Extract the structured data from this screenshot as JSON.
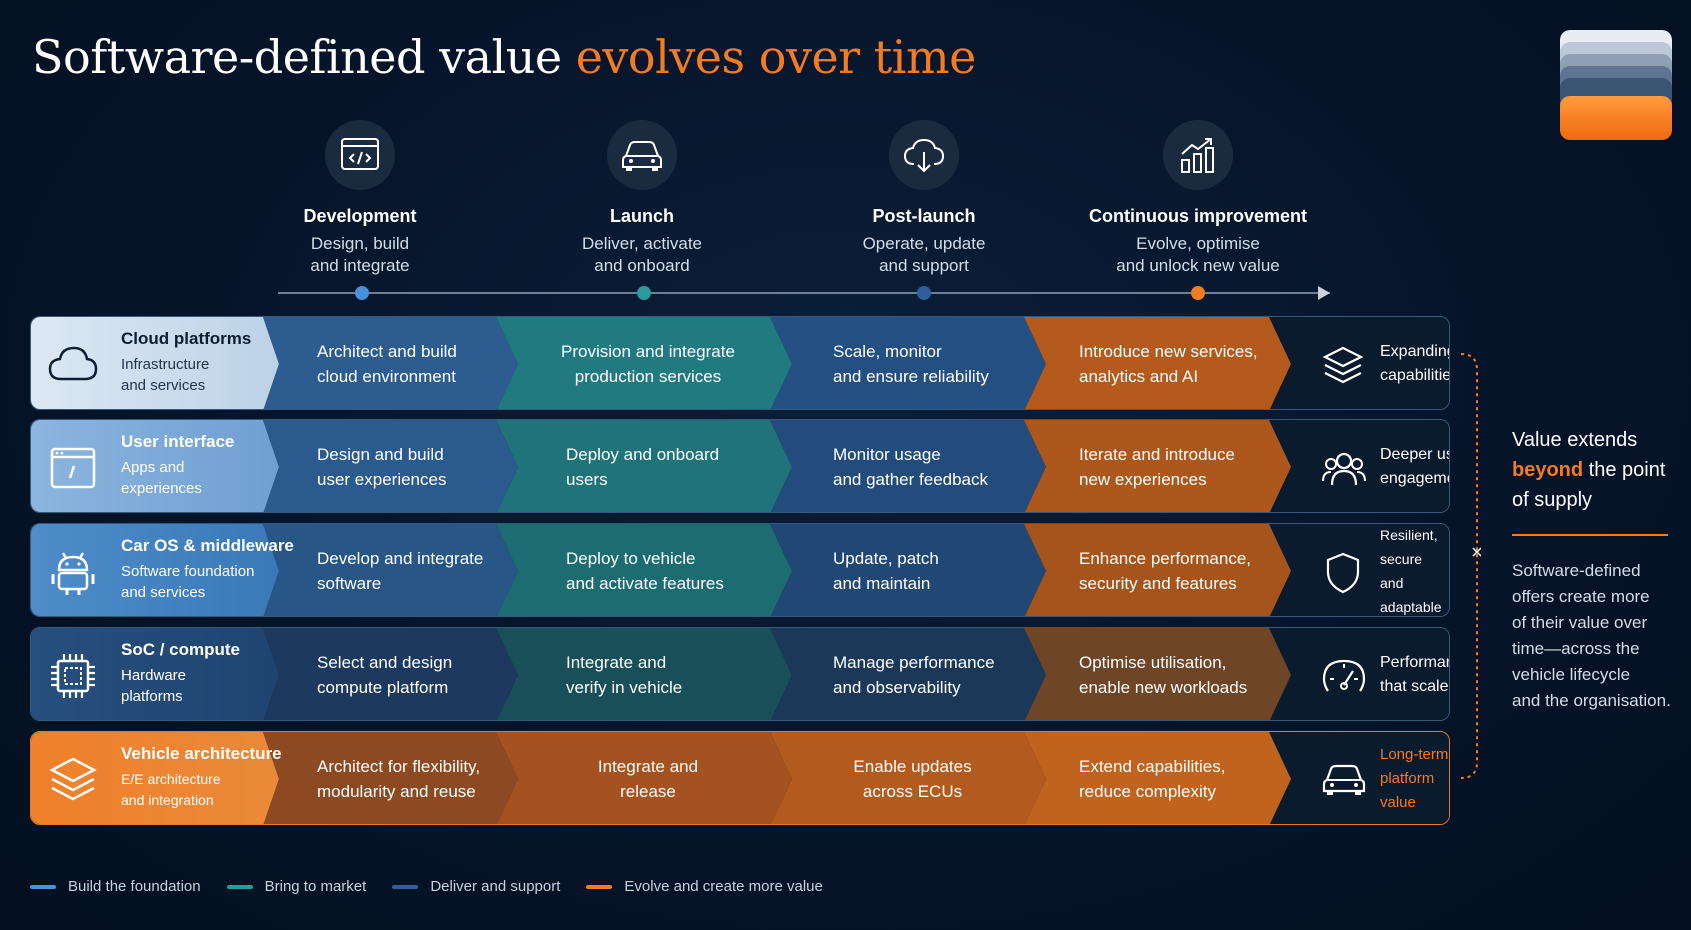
{
  "title": {
    "main": "Software-defined value ",
    "accent": "evolves over time"
  },
  "colors": {
    "background": "#06152a",
    "foundation": "#4a90d9",
    "market": "#2a9a9a",
    "support": "#2f5f9a",
    "evolve": "#f47b20"
  },
  "phases": [
    {
      "icon": "code-window-icon",
      "name": "Development",
      "line1": "Design, build",
      "line2": "and integrate"
    },
    {
      "icon": "car-icon",
      "name": "Launch",
      "line1": "Deliver, activate",
      "line2": "and onboard"
    },
    {
      "icon": "cloud-download-icon",
      "name": "Post-launch",
      "line1": "Operate, update",
      "line2": "and support"
    },
    {
      "icon": "growth-chart-icon",
      "name": "Continuous improvement",
      "line1": "Evolve, optimise",
      "line2": "and unlock new value"
    }
  ],
  "rows": [
    {
      "icon": "cloud-icon",
      "title": "Cloud platforms",
      "sub1": "Infrastructure",
      "sub2": "and services",
      "c1a": "Architect and build",
      "c1b": "cloud environment",
      "c2a": "Provision and integrate",
      "c2b": "production services",
      "c3a": "Scale, monitor",
      "c3b": "and ensure reliability",
      "c4a": "Introduce new services,",
      "c4b": "analytics and AI",
      "end_icon": "layers-icon",
      "e1": "Expanding",
      "e2": "capabilities"
    },
    {
      "icon": "app-window-icon",
      "title": "User interface",
      "sub1": "Apps and",
      "sub2": "experiences",
      "c1a": "Design and build",
      "c1b": "user experiences",
      "c2a": "Deploy and onboard",
      "c2b": "users",
      "c3a": "Monitor usage",
      "c3b": "and gather feedback",
      "c4a": "Iterate and introduce",
      "c4b": "new experiences",
      "end_icon": "users-icon",
      "e1": "Deeper user",
      "e2": "engagement"
    },
    {
      "icon": "android-icon",
      "title": "Car OS & middleware",
      "sub1": "Software foundation",
      "sub2": "and services",
      "c1a": "Develop and integrate",
      "c1b": "software",
      "c2a": "Deploy to vehicle",
      "c2b": "and activate features",
      "c3a": "Update, patch",
      "c3b": "and maintain",
      "c4a": "Enhance performance,",
      "c4b": "security and features",
      "end_icon": "shield-icon",
      "e1": "Resilient, secure",
      "e2": "and adaptable"
    },
    {
      "icon": "chip-icon",
      "title": "SoC / compute",
      "sub1": "Hardware",
      "sub2": "platforms",
      "c1a": "Select and design",
      "c1b": "compute platform",
      "c2a": "Integrate and",
      "c2b": "verify in vehicle",
      "c3a": "Manage performance",
      "c3b": "and observability",
      "c4a": "Optimise utilisation,",
      "c4b": "enable new workloads",
      "end_icon": "gauge-icon",
      "e1": "Performance",
      "e2": "that scales"
    },
    {
      "icon": "stack-icon",
      "title": "Vehicle architecture",
      "sub1": "E/E architecture",
      "sub2": "and integration",
      "c1a": "Architect for flexibility,",
      "c1b": "modularity and reuse",
      "c2a": "Integrate and",
      "c2b": "release",
      "c3a": "Enable updates",
      "c3b": "across ECUs",
      "c4a": "Extend capabilities,",
      "c4b": "reduce complexity",
      "end_icon": "car-icon",
      "e1": "Long-term",
      "e2": "platform value"
    }
  ],
  "side": {
    "t1": "Value extends",
    "t2a": "beyond",
    "t2b": " the point",
    "t3": "of supply",
    "b1": "Software-defined",
    "b2": "offers create more",
    "b3": "of their value over",
    "b4": "time—across the",
    "b5": "vehicle lifecycle",
    "b6": "and the organisation."
  },
  "legend": [
    {
      "label": "Build the foundation",
      "color": "#4a90d9"
    },
    {
      "label": "Bring to market",
      "color": "#2a9a9a"
    },
    {
      "label": "Deliver and support",
      "color": "#2f5f9a"
    },
    {
      "label": "Evolve and create more value",
      "color": "#f47b20"
    }
  ]
}
